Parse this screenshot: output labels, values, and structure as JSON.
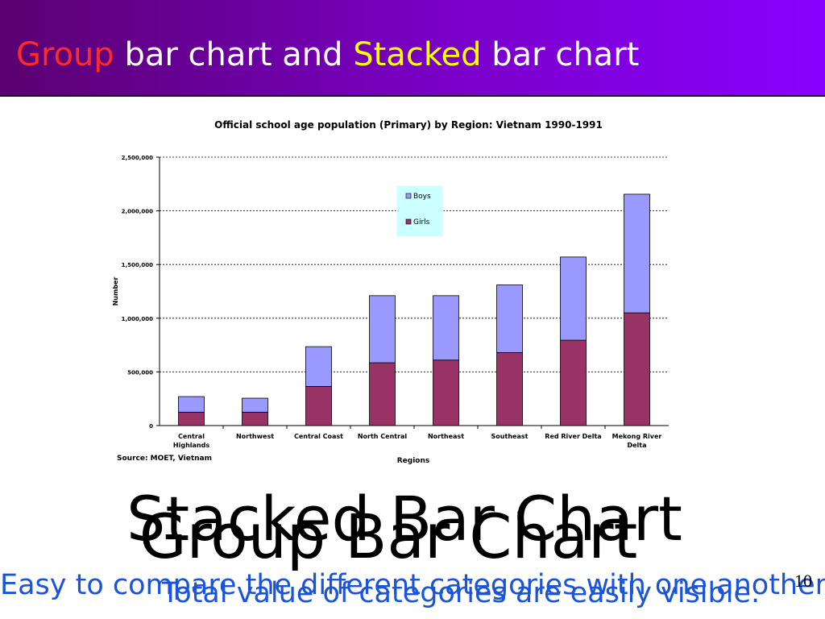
{
  "slide": {
    "title_part1": "Group",
    "title_part2": " bar chart and ",
    "title_part3": "Stacked",
    "title_part4": " bar chart",
    "page_number": "10",
    "captions": {
      "stacked_title": "Stacked Bar Chart",
      "group_title": "Group Bar Chart",
      "compare_text": "Easy to compare the different categories with one another.",
      "total_text": "Total value of categories are easily visible."
    }
  },
  "colors": {
    "title_bg_start": "#5a0070",
    "title_bg_end": "#8a00ff",
    "group_word": "#ff2a2a",
    "stacked_word": "#ffff00",
    "title_text": "#ffffff",
    "boys": "#9999ff",
    "girls": "#993366",
    "legend_bg": "#ccffff",
    "caption_blue": "#1a55d9"
  },
  "chart_data": {
    "type": "bar",
    "stacked": true,
    "title": "Official school age population (Primary) by Region: Vietnam 1990-1991",
    "xlabel": "Regions",
    "ylabel": "Number",
    "source": "Source: MOET, Vietnam",
    "categories": [
      "Central Highlands",
      "Northwest",
      "Central Coast",
      "North Central",
      "Northeast",
      "Southeast",
      "Red River Delta",
      "Mekong River Delta"
    ],
    "category_lines": [
      [
        "Central",
        "Highlands"
      ],
      [
        "Northwest"
      ],
      [
        "Central Coast"
      ],
      [
        "North Central"
      ],
      [
        "Northeast"
      ],
      [
        "Southeast"
      ],
      [
        "Red River Delta"
      ],
      [
        "Mekong River",
        "Delta"
      ]
    ],
    "series": [
      {
        "name": "Girls",
        "values": [
          125000,
          125000,
          365000,
          585000,
          610000,
          680000,
          795000,
          1050000
        ]
      },
      {
        "name": "Boys",
        "values": [
          145000,
          130000,
          370000,
          625000,
          600000,
          630000,
          775000,
          1105000
        ]
      }
    ],
    "ylim": [
      0,
      2500000
    ],
    "yticks": [
      0,
      500000,
      1000000,
      1500000,
      2000000,
      2500000
    ],
    "ytick_labels": [
      "0",
      "500,000",
      "1,000,000",
      "1,500,000",
      "2,000,000",
      "2,500,000"
    ],
    "legend_order": [
      "Boys",
      "Girls"
    ],
    "legend_position": "top-center",
    "grid": true
  }
}
